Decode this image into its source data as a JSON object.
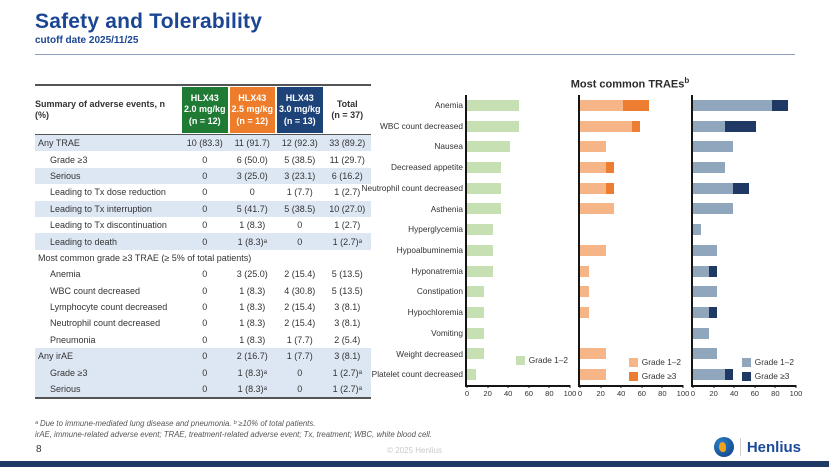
{
  "slide": {
    "title": "Safety and Tolerability",
    "subtitle": "cutoff date 2025/11/25",
    "page_number": "8",
    "copyright": "© 2025 Henlius",
    "logo_text": "Henlius",
    "accent_color": "#1b4693",
    "bottom_bar_color": "#1f3864"
  },
  "table": {
    "header": {
      "label": "Summary of adverse events, n (%)",
      "columns": [
        {
          "lines": [
            "HLX43",
            "2.0 mg/kg",
            "(n = 12)"
          ],
          "bg": "#1f7a34",
          "fg": "#ffffff"
        },
        {
          "lines": [
            "HLX43",
            "2.5 mg/kg",
            "(n = 12)"
          ],
          "bg": "#ee7d2b",
          "fg": "#ffffff"
        },
        {
          "lines": [
            "HLX43",
            "3.0 mg/kg",
            "(n = 13)"
          ],
          "bg": "#1e4378",
          "fg": "#ffffff"
        },
        {
          "lines": [
            "Total",
            "(n = 37)"
          ],
          "bg": null,
          "fg": "#333333"
        }
      ]
    },
    "rows": [
      {
        "label": "Any TRAE",
        "indent": 0,
        "shaded": true,
        "values": [
          "10 (83.3)",
          "11 (91.7)",
          "12 (92.3)",
          "33 (89.2)"
        ]
      },
      {
        "label": "Grade ≥3",
        "indent": 1,
        "shaded": false,
        "values": [
          "0",
          "6 (50.0)",
          "5 (38.5)",
          "11 (29.7)"
        ]
      },
      {
        "label": "Serious",
        "indent": 1,
        "shaded": true,
        "values": [
          "0",
          "3 (25.0)",
          "3 (23.1)",
          "6 (16.2)"
        ]
      },
      {
        "label": "Leading to Tx dose reduction",
        "indent": 1,
        "shaded": false,
        "values": [
          "0",
          "0",
          "1 (7.7)",
          "1 (2.7)"
        ]
      },
      {
        "label": "Leading to Tx interruption",
        "indent": 1,
        "shaded": true,
        "values": [
          "0",
          "5 (41.7)",
          "5 (38.5)",
          "10 (27.0)"
        ]
      },
      {
        "label": "Leading to Tx discontinuation",
        "indent": 1,
        "shaded": false,
        "values": [
          "0",
          "1 (8.3)",
          "0",
          "1 (2.7)"
        ]
      },
      {
        "label": "Leading to death",
        "indent": 1,
        "shaded": true,
        "values": [
          "0",
          "1 (8.3)ᵃ",
          "0",
          "1 (2.7)ᵃ"
        ]
      },
      {
        "label": "Most common grade ≥3 TRAE (≥ 5% of total patients)",
        "section": true,
        "shaded": false,
        "values": []
      },
      {
        "label": "Anemia",
        "indent": 1,
        "shaded": false,
        "values": [
          "0",
          "3 (25.0)",
          "2 (15.4)",
          "5 (13.5)"
        ]
      },
      {
        "label": "WBC count decreased",
        "indent": 1,
        "shaded": false,
        "values": [
          "0",
          "1 (8.3)",
          "4 (30.8)",
          "5 (13.5)"
        ]
      },
      {
        "label": "Lymphocyte count decreased",
        "indent": 1,
        "shaded": false,
        "values": [
          "0",
          "1 (8.3)",
          "2 (15.4)",
          "3 (8.1)"
        ]
      },
      {
        "label": "Neutrophil count decreased",
        "indent": 1,
        "shaded": false,
        "values": [
          "0",
          "1 (8.3)",
          "2 (15.4)",
          "3 (8.1)"
        ]
      },
      {
        "label": "Pneumonia",
        "indent": 1,
        "shaded": false,
        "values": [
          "0",
          "1 (8.3)",
          "1 (7.7)",
          "2 (5.4)"
        ]
      },
      {
        "label": "Any irAE",
        "indent": 0,
        "shaded": true,
        "values": [
          "0",
          "2 (16.7)",
          "1 (7.7)",
          "3 (8.1)"
        ]
      },
      {
        "label": "Grade ≥3",
        "indent": 1,
        "shaded": true,
        "values": [
          "0",
          "1 (8.3)ᵃ",
          "0",
          "1 (2.7)ᵃ"
        ]
      },
      {
        "label": "Serious",
        "indent": 1,
        "shaded": true,
        "values": [
          "0",
          "1 (8.3)ᵃ",
          "0",
          "1 (2.7)ᵃ"
        ]
      }
    ]
  },
  "footnotes": {
    "line1": "ᵃ Due to immune-mediated lung disease and pneumonia. ᵇ ≥10% of total patients.",
    "line2": "irAE, immune-related adverse event; TRAE, treatment-related adverse event; Tx, treatment; WBC, white blood cell."
  },
  "chart_data": {
    "type": "bar",
    "orientation": "horizontal",
    "title": "Most common TRAEs",
    "title_sup": "b",
    "categories": [
      "Anemia",
      "WBC count decreased",
      "Nausea",
      "Decreased appetite",
      "Neutrophil count decreased",
      "Asthenia",
      "Hyperglycemia",
      "Hypoalbuminemia",
      "Hyponatremia",
      "Constipation",
      "Hypochloremia",
      "Vomiting",
      "Weight decreased",
      "Platelet count decreased"
    ],
    "x_ticks": [
      "0",
      "20",
      "40",
      "60",
      "80",
      "100"
    ],
    "xlim": [
      0,
      100
    ],
    "grid": false,
    "legend_position": "bottom-right",
    "panels": [
      {
        "dose": "HLX43 2.0 mg/kg",
        "series": [
          {
            "name": "Grade 1–2",
            "color": "#c6e0b4",
            "values": [
              50.0,
              50.0,
              41.7,
              33.3,
              33.3,
              33.3,
              25.0,
              25.0,
              25.0,
              16.7,
              16.7,
              16.7,
              16.7,
              8.3
            ]
          }
        ]
      },
      {
        "dose": "HLX43 2.5 mg/kg",
        "series": [
          {
            "name": "Grade 1–2",
            "color": "#f6b587",
            "values": [
              41.7,
              50.0,
              25.0,
              25.0,
              25.0,
              33.3,
              0,
              25.0,
              8.3,
              8.3,
              8.3,
              0,
              25.0,
              25.0
            ]
          },
          {
            "name": "Grade ≥3",
            "color": "#ed7d31",
            "values": [
              25.0,
              8.3,
              0,
              8.3,
              8.3,
              0,
              0,
              0,
              0,
              0,
              0,
              0,
              0,
              0
            ]
          }
        ]
      },
      {
        "dose": "HLX43 3.0 mg/kg",
        "series": [
          {
            "name": "Grade 1–2",
            "color": "#8fa6bd",
            "values": [
              76.9,
              30.8,
              38.5,
              30.8,
              38.5,
              38.5,
              7.7,
              23.1,
              15.4,
              23.1,
              15.4,
              15.4,
              23.1,
              30.8
            ]
          },
          {
            "name": "Grade ≥3",
            "color": "#1f3864",
            "values": [
              15.4,
              30.8,
              0,
              0,
              15.4,
              0,
              0,
              0,
              7.7,
              0,
              7.7,
              0,
              0,
              7.7
            ]
          }
        ]
      }
    ]
  }
}
